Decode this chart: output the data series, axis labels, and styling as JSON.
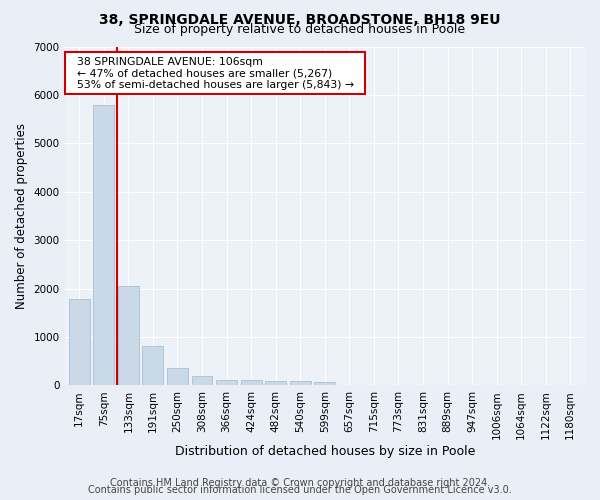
{
  "title1": "38, SPRINGDALE AVENUE, BROADSTONE, BH18 9EU",
  "title2": "Size of property relative to detached houses in Poole",
  "xlabel": "Distribution of detached houses by size in Poole",
  "ylabel": "Number of detached properties",
  "bar_labels": [
    "17sqm",
    "75sqm",
    "133sqm",
    "191sqm",
    "250sqm",
    "308sqm",
    "366sqm",
    "424sqm",
    "482sqm",
    "540sqm",
    "599sqm",
    "657sqm",
    "715sqm",
    "773sqm",
    "831sqm",
    "889sqm",
    "947sqm",
    "1006sqm",
    "1064sqm",
    "1122sqm",
    "1180sqm"
  ],
  "bar_values": [
    1780,
    5800,
    2060,
    820,
    360,
    200,
    110,
    100,
    95,
    80,
    60,
    0,
    0,
    0,
    0,
    0,
    0,
    0,
    0,
    0,
    0
  ],
  "bar_color": "#c9d9e8",
  "bar_edge_color": "#a0b8cc",
  "property_line_x": 1.53,
  "annotation_text": "  38 SPRINGDALE AVENUE: 106sqm  \n  ← 47% of detached houses are smaller (5,267)  \n  53% of semi-detached houses are larger (5,843) →  ",
  "annotation_box_color": "#ffffff",
  "annotation_box_edge": "#cc0000",
  "vline_color": "#cc0000",
  "ylim": [
    0,
    7000
  ],
  "yticks": [
    0,
    1000,
    2000,
    3000,
    4000,
    5000,
    6000,
    7000
  ],
  "bg_color": "#eaeff7",
  "plot_bg_color": "#edf1f8",
  "grid_color": "#ffffff",
  "footer1": "Contains HM Land Registry data © Crown copyright and database right 2024.",
  "footer2": "Contains public sector information licensed under the Open Government Licence v3.0.",
  "title1_fontsize": 10,
  "title2_fontsize": 9,
  "xlabel_fontsize": 9,
  "ylabel_fontsize": 8.5,
  "tick_fontsize": 7.5,
  "annotation_fontsize": 7.8,
  "footer_fontsize": 7
}
